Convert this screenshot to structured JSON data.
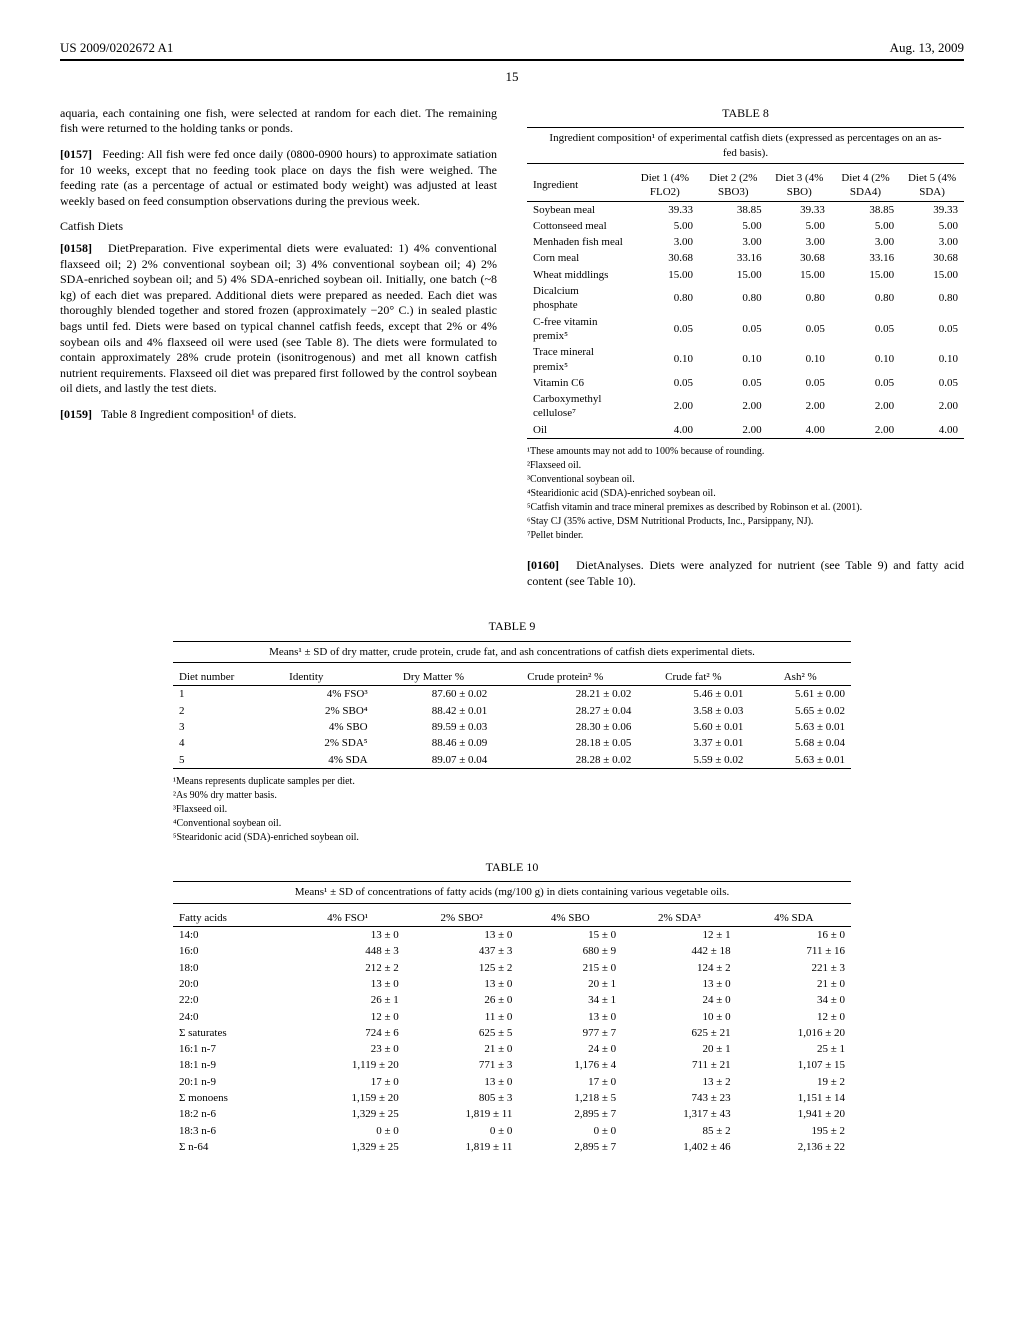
{
  "header": {
    "left": "US 2009/0202672 A1",
    "right": "Aug. 13, 2009"
  },
  "page_num": "15",
  "left": {
    "p_cont": "aquaria, each containing one fish, were selected at random for each diet. The remaining fish were returned to the holding tanks or ponds.",
    "p0157_num": "[0157]",
    "p0157": "Feeding: All fish were fed once daily (0800-0900 hours) to approximate satiation for 10 weeks, except that no feeding took place on days the fish were weighed. The feeding rate (as a percentage of actual or estimated body weight) was adjusted at least weekly based on feed consumption observations during the previous week.",
    "sub1": "Catfish Diets",
    "p0158_num": "[0158]",
    "p0158": "DietPreparation. Five experimental diets were evaluated: 1) 4% conventional flaxseed oil; 2) 2% conventional soybean oil; 3) 4% conventional soybean oil; 4) 2% SDA-enriched soybean oil; and 5) 4% SDA-enriched soybean oil. Initially, one batch (~8 kg) of each diet was prepared. Additional diets were prepared as needed. Each diet was thoroughly blended together and stored frozen (approximately −20° C.) in sealed plastic bags until fed. Diets were based on typical channel catfish feeds, except that 2% or 4% soybean oils and 4% flaxseed oil were used (see Table 8). The diets were formulated to contain approximately 28% crude protein (isonitrogenous) and met all known catfish nutrient requirements. Flaxseed oil diet was prepared first followed by the control soybean oil diets, and lastly the test diets.",
    "p0159_num": "[0159]",
    "p0159": "Table 8 Ingredient composition¹ of diets."
  },
  "right": {
    "p0160_num": "[0160]",
    "p0160": "DietAnalyses. Diets were analyzed for nutrient (see Table 9) and fatty acid content (see Table 10)."
  },
  "t8": {
    "label": "TABLE 8",
    "caption": "Ingredient composition¹ of experimental catfish diets (expressed as percentages on an as-fed basis).",
    "headers": [
      "Ingredient",
      "Diet 1 (4% FLO2)",
      "Diet 2 (2% SBO3)",
      "Diet 3 (4% SBO)",
      "Diet 4 (2% SDA4)",
      "Diet 5 (4% SDA)"
    ],
    "rows": [
      [
        "Soybean meal",
        "39.33",
        "38.85",
        "39.33",
        "38.85",
        "39.33"
      ],
      [
        "Cottonseed meal",
        "5.00",
        "5.00",
        "5.00",
        "5.00",
        "5.00"
      ],
      [
        "Menhaden fish meal",
        "3.00",
        "3.00",
        "3.00",
        "3.00",
        "3.00"
      ],
      [
        "Corn meal",
        "30.68",
        "33.16",
        "30.68",
        "33.16",
        "30.68"
      ],
      [
        "Wheat middlings",
        "15.00",
        "15.00",
        "15.00",
        "15.00",
        "15.00"
      ],
      [
        "Dicalcium phosphate",
        "0.80",
        "0.80",
        "0.80",
        "0.80",
        "0.80"
      ],
      [
        "C-free vitamin premix⁵",
        "0.05",
        "0.05",
        "0.05",
        "0.05",
        "0.05"
      ],
      [
        "Trace mineral premix⁵",
        "0.10",
        "0.10",
        "0.10",
        "0.10",
        "0.10"
      ],
      [
        "Vitamin C6",
        "0.05",
        "0.05",
        "0.05",
        "0.05",
        "0.05"
      ],
      [
        "Carboxymethyl cellulose⁷",
        "2.00",
        "2.00",
        "2.00",
        "2.00",
        "2.00"
      ],
      [
        "Oil",
        "4.00",
        "2.00",
        "4.00",
        "2.00",
        "4.00"
      ]
    ],
    "footnotes": [
      "¹These amounts may not add to 100% because of rounding.",
      "²Flaxseed oil.",
      "³Conventional soybean oil.",
      "⁴Stearidionic acid (SDA)-enriched soybean oil.",
      "⁵Catfish vitamin and trace mineral premixes as described by Robinson et al. (2001).",
      "⁶Stay CJ (35% active, DSM Nutritional Products, Inc., Parsippany, NJ).",
      "⁷Pellet binder."
    ]
  },
  "t9": {
    "label": "TABLE 9",
    "caption": "Means¹ ± SD of dry matter, crude protein, crude fat, and ash concentrations of catfish diets experimental diets.",
    "headers": [
      "Diet number",
      "Identity",
      "Dry Matter %",
      "Crude protein² %",
      "Crude fat² %",
      "Ash² %"
    ],
    "rows": [
      [
        "1",
        "4% FSO³",
        "87.60 ± 0.02",
        "28.21 ± 0.02",
        "5.46 ± 0.01",
        "5.61 ± 0.00"
      ],
      [
        "2",
        "2% SBO⁴",
        "88.42 ± 0.01",
        "28.27 ± 0.04",
        "3.58 ± 0.03",
        "5.65 ± 0.02"
      ],
      [
        "3",
        "4% SBO",
        "89.59 ± 0.03",
        "28.30 ± 0.06",
        "5.60 ± 0.01",
        "5.63 ± 0.01"
      ],
      [
        "4",
        "2% SDA⁵",
        "88.46 ± 0.09",
        "28.18 ± 0.05",
        "3.37 ± 0.01",
        "5.68 ± 0.04"
      ],
      [
        "5",
        "4% SDA",
        "89.07 ± 0.04",
        "28.28 ± 0.02",
        "5.59 ± 0.02",
        "5.63 ± 0.01"
      ]
    ],
    "footnotes": [
      "¹Means represents duplicate samples per diet.",
      "²As 90% dry matter basis.",
      "³Flaxseed oil.",
      "⁴Conventional soybean oil.",
      "⁵Stearidonic acid (SDA)-enriched soybean oil."
    ]
  },
  "t10": {
    "label": "TABLE 10",
    "caption": "Means¹ ± SD of concentrations of fatty acids (mg/100 g) in diets containing various vegetable oils.",
    "headers": [
      "Fatty acids",
      "4% FSO¹",
      "2% SBO²",
      "4% SBO",
      "2% SDA³",
      "4% SDA"
    ],
    "rows": [
      [
        "14:0",
        "13 ± 0",
        "13 ± 0",
        "15 ± 0",
        "12 ± 1",
        "16 ± 0"
      ],
      [
        "16:0",
        "448 ± 3",
        "437 ± 3",
        "680 ± 9",
        "442 ± 18",
        "711 ± 16"
      ],
      [
        "18:0",
        "212 ± 2",
        "125 ± 2",
        "215 ± 0",
        "124 ± 2",
        "221 ± 3"
      ],
      [
        "20:0",
        "13 ± 0",
        "13 ± 0",
        "20 ± 1",
        "13 ± 0",
        "21 ± 0"
      ],
      [
        "22:0",
        "26 ± 1",
        "26 ± 0",
        "34 ± 1",
        "24 ± 0",
        "34 ± 0"
      ],
      [
        "24:0",
        "12 ± 0",
        "11 ± 0",
        "13 ± 0",
        "10 ± 0",
        "12 ± 0"
      ],
      [
        "Σ saturates",
        "724 ± 6",
        "625 ± 5",
        "977 ± 7",
        "625 ± 21",
        "1,016 ± 20"
      ],
      [
        "16:1 n-7",
        "23 ± 0",
        "21 ± 0",
        "24 ± 0",
        "20 ± 1",
        "25 ± 1"
      ],
      [
        "18:1 n-9",
        "1,119 ± 20",
        "771 ± 3",
        "1,176 ± 4",
        "711 ± 21",
        "1,107 ± 15"
      ],
      [
        "20:1 n-9",
        "17 ± 0",
        "13 ± 0",
        "17 ± 0",
        "13 ± 2",
        "19 ± 2"
      ],
      [
        "Σ monoens",
        "1,159 ± 20",
        "805 ± 3",
        "1,218 ± 5",
        "743 ± 23",
        "1,151 ± 14"
      ],
      [
        "18:2 n-6",
        "1,329 ± 25",
        "1,819 ± 11",
        "2,895 ± 7",
        "1,317 ± 43",
        "1,941 ± 20"
      ],
      [
        "18:3 n-6",
        "0 ± 0",
        "0 ± 0",
        "0 ± 0",
        "85 ± 2",
        "195 ± 2"
      ],
      [
        "Σ n-64",
        "1,329 ± 25",
        "1,819 ± 11",
        "2,895 ± 7",
        "1,402 ± 46",
        "2,136 ± 22"
      ]
    ]
  }
}
